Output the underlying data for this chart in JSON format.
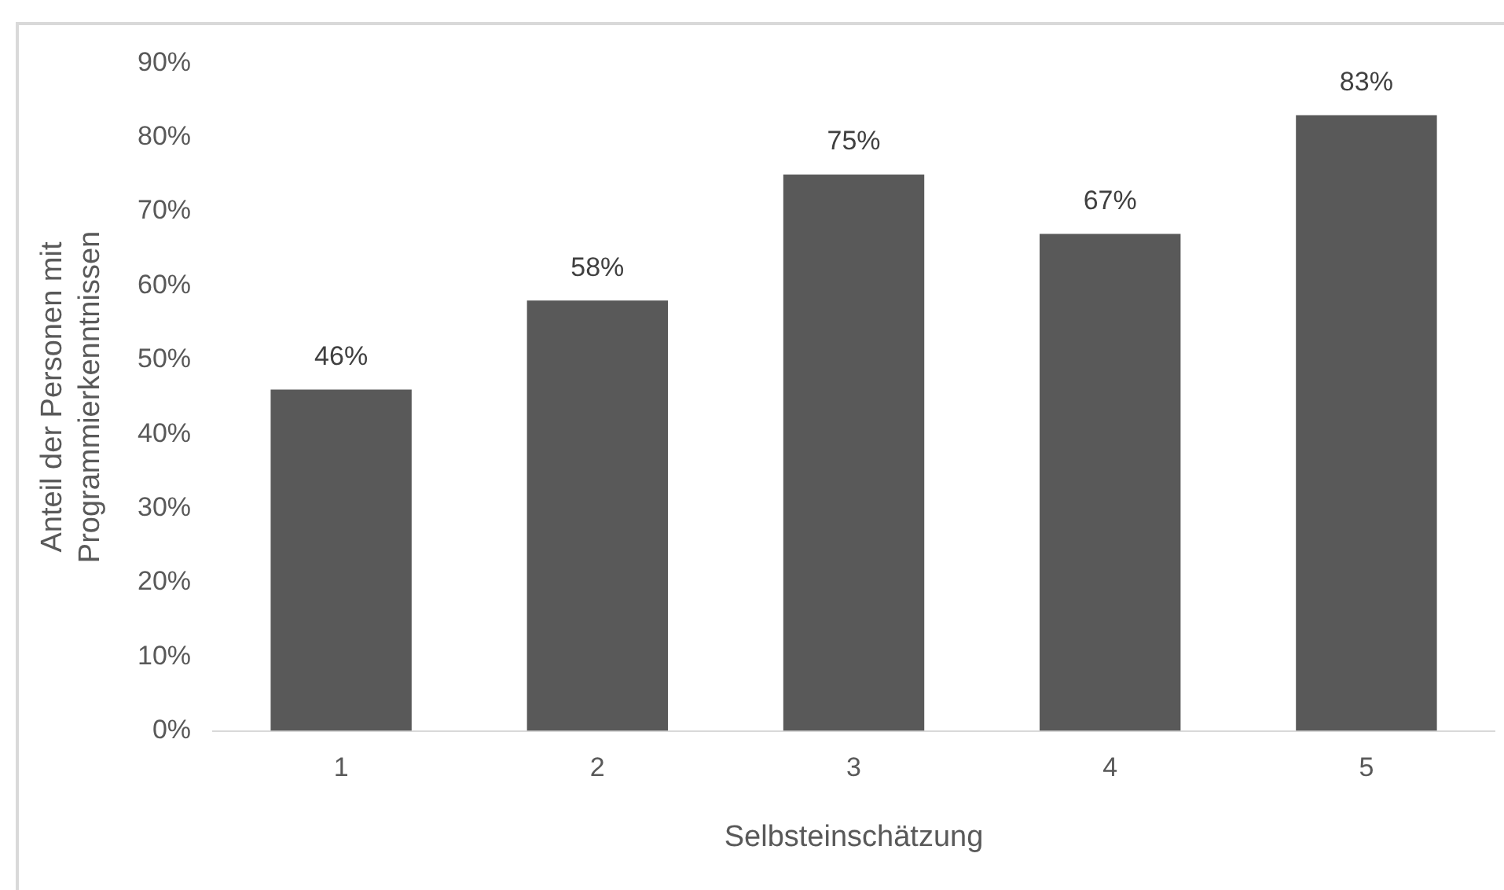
{
  "chart_data": {
    "type": "bar",
    "xlabel": "Selbsteinschätzung",
    "ylabel": "Anteil der Personen mit\nProgrammierkenntnissen",
    "categories": [
      "1",
      "2",
      "3",
      "4",
      "5"
    ],
    "values": [
      46,
      58,
      75,
      67,
      83
    ],
    "color": "#595959",
    "value_labels": [
      "46%",
      "58%",
      "75%",
      "67%",
      "83%"
    ],
    "ylim": [
      0,
      90
    ],
    "yticks": [
      {
        "value": 0,
        "label": "0%"
      },
      {
        "value": 10,
        "label": "10%"
      },
      {
        "value": 20,
        "label": "20%"
      },
      {
        "value": 30,
        "label": "30%"
      },
      {
        "value": 40,
        "label": "40%"
      },
      {
        "value": 50,
        "label": "50%"
      },
      {
        "value": 60,
        "label": "60%"
      },
      {
        "value": 70,
        "label": "70%"
      },
      {
        "value": 80,
        "label": "80%"
      },
      {
        "value": 90,
        "label": "90%"
      }
    ],
    "grid": false,
    "legend": false
  }
}
